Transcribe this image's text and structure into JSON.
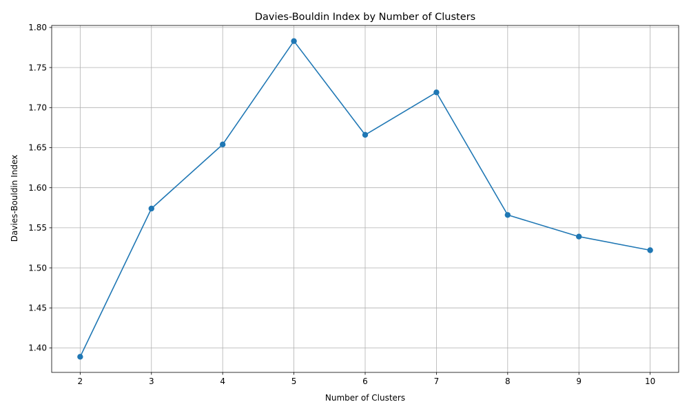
{
  "chart_data": {
    "type": "line",
    "title": "Davies-Bouldin Index by Number of Clusters",
    "xlabel": "Number of Clusters",
    "ylabel": "Davies-Bouldin Index",
    "x": [
      2,
      3,
      4,
      5,
      6,
      7,
      8,
      9,
      10
    ],
    "series": [
      {
        "values": [
          1.389,
          1.574,
          1.654,
          1.783,
          1.666,
          1.719,
          1.566,
          1.539,
          1.522
        ],
        "color": "#1f77b4",
        "marker": "circle"
      }
    ],
    "xticks": [
      "2",
      "3",
      "4",
      "5",
      "6",
      "7",
      "8",
      "9",
      "10"
    ],
    "yticks": [
      "1.40",
      "1.45",
      "1.50",
      "1.55",
      "1.60",
      "1.65",
      "1.70",
      "1.75",
      "1.80"
    ],
    "xlim": [
      1.6,
      10.4
    ],
    "ylim": [
      1.3695,
      1.8025
    ],
    "grid": true,
    "legend": false
  }
}
